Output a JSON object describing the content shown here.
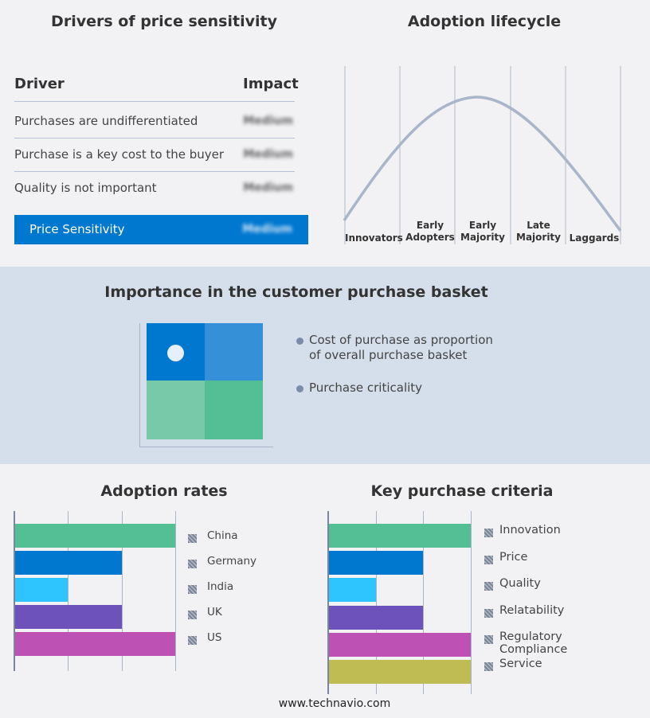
{
  "drivers": {
    "title": "Drivers of price sensitivity",
    "col_driver": "Driver",
    "col_impact": "Impact",
    "rows": [
      {
        "driver": "Purchases are undifferentiated",
        "impact": "Medium"
      },
      {
        "driver": "Purchase is a key cost to the buyer",
        "impact": "Medium"
      },
      {
        "driver": "Quality is not important",
        "impact": "Medium"
      }
    ],
    "summary": {
      "label": "Price Sensitivity",
      "impact": "Medium"
    },
    "accent": "#0078d0"
  },
  "lifecycle": {
    "title": "Adoption lifecycle",
    "stages": [
      "Innovators",
      "Early Adopters",
      "Early Majority",
      "Late Majority",
      "Laggards"
    ]
  },
  "basket": {
    "title": "Importance in the customer purchase basket",
    "legend": [
      "Cost of purchase as proportion of overall purchase basket",
      "Purchase criticality"
    ],
    "colors": [
      "#0078d0",
      "#3590d8",
      "#78c8aa",
      "#54be94"
    ]
  },
  "footer": "www.technavio.com",
  "chart_data": [
    {
      "type": "bar",
      "title": "Adoption rates",
      "categories": [
        "China",
        "Germany",
        "India",
        "UK",
        "US"
      ],
      "values": [
        3,
        2,
        1,
        2,
        3
      ],
      "xlim": [
        0,
        3
      ],
      "grid": true,
      "legend": "right",
      "colors": [
        "#54be94",
        "#0078d0",
        "#2ec4fe",
        "#6e52bc",
        "#be52b4"
      ]
    },
    {
      "type": "bar",
      "title": "Key purchase criteria",
      "categories": [
        "Innovation",
        "Price",
        "Quality",
        "Relatability",
        "Regulatory Compliance",
        "Service"
      ],
      "values": [
        3,
        2,
        1,
        2,
        3,
        3
      ],
      "xlim": [
        0,
        3
      ],
      "grid": true,
      "legend": "right",
      "colors": [
        "#54be94",
        "#0078d0",
        "#2ec4fe",
        "#6e52bc",
        "#be52b4",
        "#c0bc54"
      ]
    }
  ]
}
